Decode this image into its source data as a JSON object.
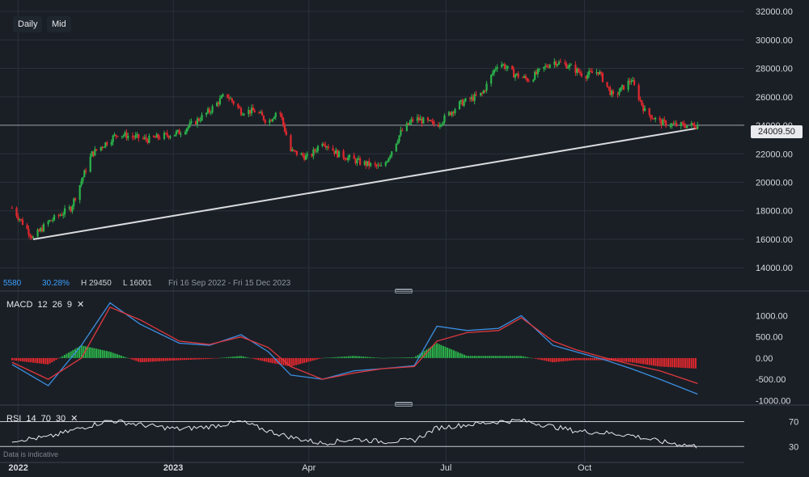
{
  "toolbar": {
    "interval_label": "Daily",
    "price_type_label": "Mid"
  },
  "stats": {
    "value_a": "5580",
    "value_b": "30.28%",
    "high": "H 29450",
    "low": "L 16001",
    "range": "Fri 16 Sep 2022 - Fri 15 Dec 2023"
  },
  "current_price": "24009.50",
  "macd": {
    "name": "MACD",
    "p1": "12",
    "p2": "26",
    "p3": "9"
  },
  "rsi": {
    "name": "RSI",
    "p1": "14",
    "p2": "70",
    "p3": "30"
  },
  "footnote": "Data is indicative",
  "colors": {
    "up": "#2bb34a",
    "down": "#e0282e",
    "macd_line": "#3b8fe0",
    "signal_line": "#e0383e",
    "trendline": "#d9dbde"
  },
  "chart_data": [
    {
      "type": "candlestick",
      "title": "",
      "y_ticks": [
        "32000.00",
        "30000.00",
        "28000.00",
        "26000.00",
        "24000.00",
        "22000.00",
        "20000.00",
        "18000.00",
        "16000.00",
        "14000.00"
      ],
      "x_ticks": [
        "2022",
        "2023",
        "Apr",
        "Jul",
        "Oct"
      ],
      "ylim": [
        13500,
        32800
      ],
      "grid": true,
      "close_path": {
        "x": [
          "2022-09-16",
          "2022-09-30",
          "2022-10-10",
          "2022-10-25",
          "2022-11-08",
          "2022-11-25",
          "2022-12-15",
          "2023-01-05",
          "2023-01-15",
          "2023-01-25",
          "2023-02-05",
          "2023-02-15",
          "2023-02-25",
          "2023-03-05",
          "2023-03-12",
          "2023-03-20",
          "2023-04-01",
          "2023-04-10",
          "2023-04-20",
          "2023-05-05",
          "2023-05-20",
          "2023-06-01",
          "2023-06-10",
          "2023-06-25",
          "2023-07-10",
          "2023-07-25",
          "2023-08-05",
          "2023-08-15",
          "2023-08-25",
          "2023-09-10",
          "2023-09-20",
          "2023-10-01",
          "2023-10-10",
          "2023-10-20",
          "2023-11-01",
          "2023-11-10",
          "2023-11-20",
          "2023-12-01",
          "2023-12-15"
        ],
        "y": [
          18200,
          16100,
          17200,
          18200,
          22000,
          23400,
          23000,
          23500,
          24200,
          25000,
          26200,
          25000,
          25000,
          24200,
          25200,
          22200,
          21700,
          22900,
          22000,
          21400,
          21000,
          23500,
          24500,
          24000,
          25500,
          26200,
          28500,
          27600,
          27200,
          28500,
          28200,
          27500,
          27800,
          26000,
          27200,
          25000,
          24200,
          24000,
          24000
        ]
      },
      "trendline": {
        "start": {
          "x": "2022-09-30",
          "y": 16000
        },
        "end": {
          "x": "2023-12-15",
          "y": 23800
        }
      },
      "current_price": 24009.5
    },
    {
      "type": "line",
      "title": "MACD 12 26 9",
      "y_ticks": [
        "1000.00",
        "500.00",
        "0.00",
        "-500.00",
        "-1000.00"
      ],
      "ylim": [
        -1050,
        1350
      ],
      "x": [
        "2022-09-16",
        "2022-10-10",
        "2022-11-01",
        "2022-11-20",
        "2022-12-10",
        "2023-01-05",
        "2023-01-25",
        "2023-02-15",
        "2023-03-05",
        "2023-03-20",
        "2023-04-10",
        "2023-05-01",
        "2023-05-20",
        "2023-06-10",
        "2023-06-25",
        "2023-07-15",
        "2023-08-05",
        "2023-08-20",
        "2023-09-10",
        "2023-09-25",
        "2023-10-15",
        "2023-11-01",
        "2023-11-20",
        "2023-12-15"
      ],
      "series": [
        {
          "name": "MACD",
          "values": [
            -150,
            -650,
            300,
            1300,
            800,
            350,
            300,
            550,
            150,
            -400,
            -500,
            -300,
            -250,
            -180,
            750,
            650,
            700,
            1000,
            300,
            150,
            -50,
            -250,
            -500,
            -850
          ]
        },
        {
          "name": "Signal",
          "values": [
            -100,
            -500,
            0,
            1200,
            900,
            400,
            320,
            500,
            250,
            -200,
            -500,
            -350,
            -250,
            -200,
            400,
            600,
            650,
            950,
            400,
            200,
            0,
            -150,
            -300,
            -600
          ]
        }
      ],
      "histogram": [
        -50,
        -150,
        300,
        150,
        -100,
        -50,
        -20,
        50,
        -100,
        -200,
        0,
        50,
        0,
        20,
        350,
        50,
        50,
        50,
        -100,
        -50,
        -50,
        -100,
        -200,
        -250
      ]
    },
    {
      "type": "line",
      "title": "RSI 14 70 30",
      "y_ticks": [
        "70",
        "30"
      ],
      "ylim": [
        20,
        85
      ],
      "x": [
        "2022-09-16",
        "2022-10-10",
        "2022-11-01",
        "2022-11-20",
        "2022-12-10",
        "2023-01-05",
        "2023-01-25",
        "2023-02-15",
        "2023-03-05",
        "2023-03-20",
        "2023-04-10",
        "2023-05-01",
        "2023-05-20",
        "2023-06-10",
        "2023-06-25",
        "2023-07-15",
        "2023-08-05",
        "2023-08-20",
        "2023-09-10",
        "2023-09-25",
        "2023-10-15",
        "2023-11-01",
        "2023-11-20",
        "2023-12-15"
      ],
      "values": [
        40,
        45,
        60,
        72,
        65,
        58,
        62,
        70,
        55,
        45,
        35,
        42,
        38,
        40,
        60,
        65,
        70,
        72,
        62,
        55,
        52,
        48,
        38,
        30
      ]
    }
  ]
}
